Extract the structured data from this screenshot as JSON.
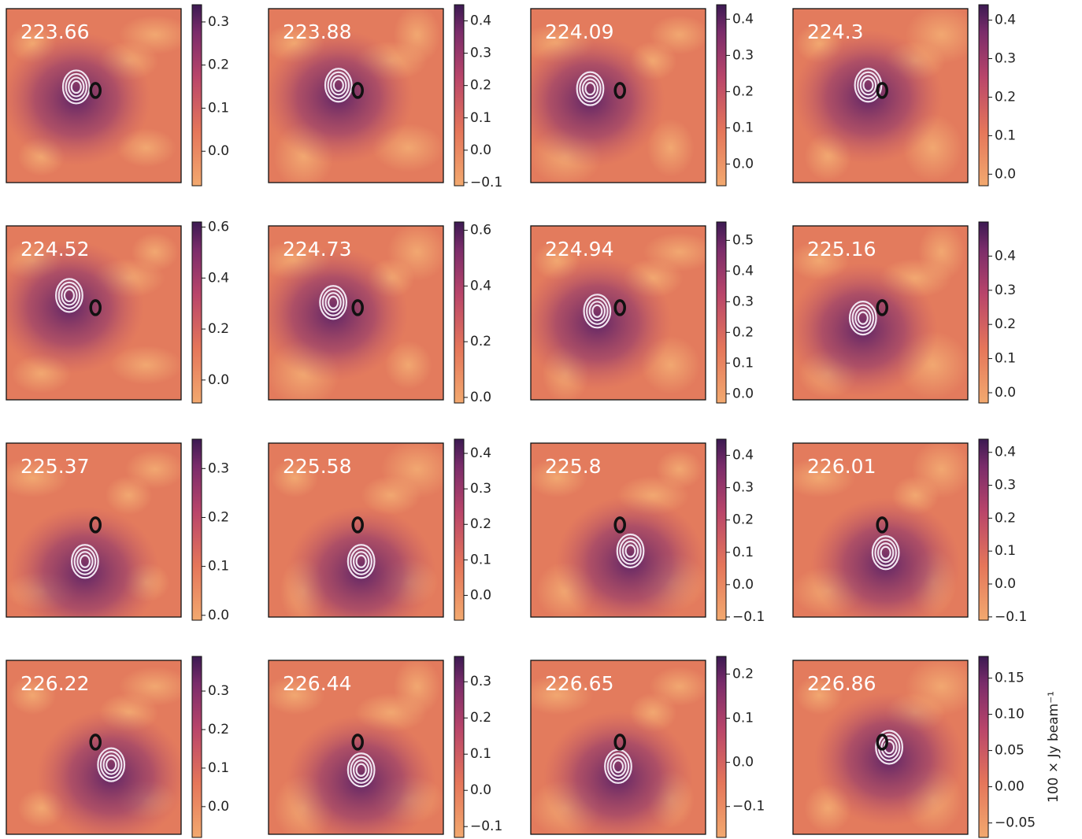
{
  "chart_data": [
    {
      "type": "image",
      "title": "223.66",
      "ylim": [
        -0.08,
        0.34
      ],
      "yticks": [
        {
          "value": 0,
          "label": "0.0"
        },
        0.1,
        0.2,
        0.3
      ]
    },
    {
      "type": "image",
      "title": "223.88",
      "ylim": [
        -0.11,
        0.45
      ],
      "yticks": [
        {
          "value": -0.1,
          "label": "−0.1"
        },
        {
          "value": 0,
          "label": "0.0"
        },
        0.1,
        0.2,
        0.3,
        0.4
      ]
    },
    {
      "type": "image",
      "title": "224.09",
      "ylim": [
        -0.06,
        0.44
      ],
      "yticks": [
        {
          "value": 0,
          "label": "0.0"
        },
        0.1,
        0.2,
        0.3,
        0.4
      ]
    },
    {
      "type": "image",
      "title": "224.3",
      "ylim": [
        -0.03,
        0.44
      ],
      "yticks": [
        {
          "value": 0,
          "label": "0.0"
        },
        0.1,
        0.2,
        0.3,
        0.4
      ]
    },
    {
      "type": "image",
      "title": "224.52",
      "ylim": [
        -0.09,
        0.62
      ],
      "yticks": [
        {
          "value": 0,
          "label": "0.0"
        },
        0.2,
        0.4,
        0.6
      ]
    },
    {
      "type": "image",
      "title": "224.73",
      "ylim": [
        -0.02,
        0.63
      ],
      "yticks": [
        {
          "value": 0,
          "label": "0.0"
        },
        0.2,
        0.4,
        0.6
      ]
    },
    {
      "type": "image",
      "title": "224.94",
      "ylim": [
        -0.03,
        0.56
      ],
      "yticks": [
        {
          "value": 0,
          "label": "0.0"
        },
        0.1,
        0.2,
        0.3,
        0.4,
        0.5
      ]
    },
    {
      "type": "image",
      "title": "225.16",
      "ylim": [
        -0.03,
        0.5
      ],
      "yticks": [
        {
          "value": 0,
          "label": "0.0"
        },
        0.1,
        0.2,
        0.3,
        0.4
      ]
    },
    {
      "type": "image",
      "title": "225.37",
      "ylim": [
        -0.01,
        0.36
      ],
      "yticks": [
        {
          "value": 0,
          "label": "0.0"
        },
        0.1,
        0.2,
        0.3
      ]
    },
    {
      "type": "image",
      "title": "225.58",
      "ylim": [
        -0.07,
        0.44
      ],
      "yticks": [
        {
          "value": 0,
          "label": "0.0"
        },
        0.1,
        0.2,
        0.3,
        0.4
      ]
    },
    {
      "type": "image",
      "title": "225.8",
      "ylim": [
        -0.11,
        0.45
      ],
      "yticks": [
        {
          "value": -0.1,
          "label": "−0.1"
        },
        {
          "value": 0,
          "label": "0.0"
        },
        0.1,
        0.2,
        0.3,
        0.4
      ]
    },
    {
      "type": "image",
      "title": "226.01",
      "ylim": [
        -0.11,
        0.44
      ],
      "yticks": [
        {
          "value": -0.1,
          "label": "−0.1"
        },
        {
          "value": 0,
          "label": "0.0"
        },
        0.1,
        0.2,
        0.3,
        0.4
      ]
    },
    {
      "type": "image",
      "title": "226.22",
      "ylim": [
        -0.08,
        0.39
      ],
      "yticks": [
        {
          "value": 0,
          "label": "0.0"
        },
        0.1,
        0.2,
        0.3
      ]
    },
    {
      "type": "image",
      "title": "226.44",
      "ylim": [
        -0.13,
        0.37
      ],
      "yticks": [
        {
          "value": -0.1,
          "label": "−0.1"
        },
        {
          "value": 0,
          "label": "0.0"
        },
        0.1,
        0.2,
        0.3
      ]
    },
    {
      "type": "image",
      "title": "226.65",
      "ylim": [
        -0.17,
        0.24
      ],
      "yticks": [
        {
          "value": -0.1,
          "label": "−0.1"
        },
        {
          "value": 0,
          "label": "0.0"
        },
        0.1,
        0.2
      ]
    },
    {
      "type": "image",
      "title": "226.86",
      "ylim": [
        -0.07,
        0.18
      ],
      "yticks": [
        {
          "value": -0.05,
          "label": "−0.05"
        },
        {
          "value": 0,
          "label": "0.00"
        },
        {
          "value": 0.05,
          "label": "0.05"
        },
        {
          "value": 0.1,
          "label": "0.10"
        },
        0.15
      ],
      "colorbar_label": "100 × Jy beam⁻¹"
    }
  ]
}
